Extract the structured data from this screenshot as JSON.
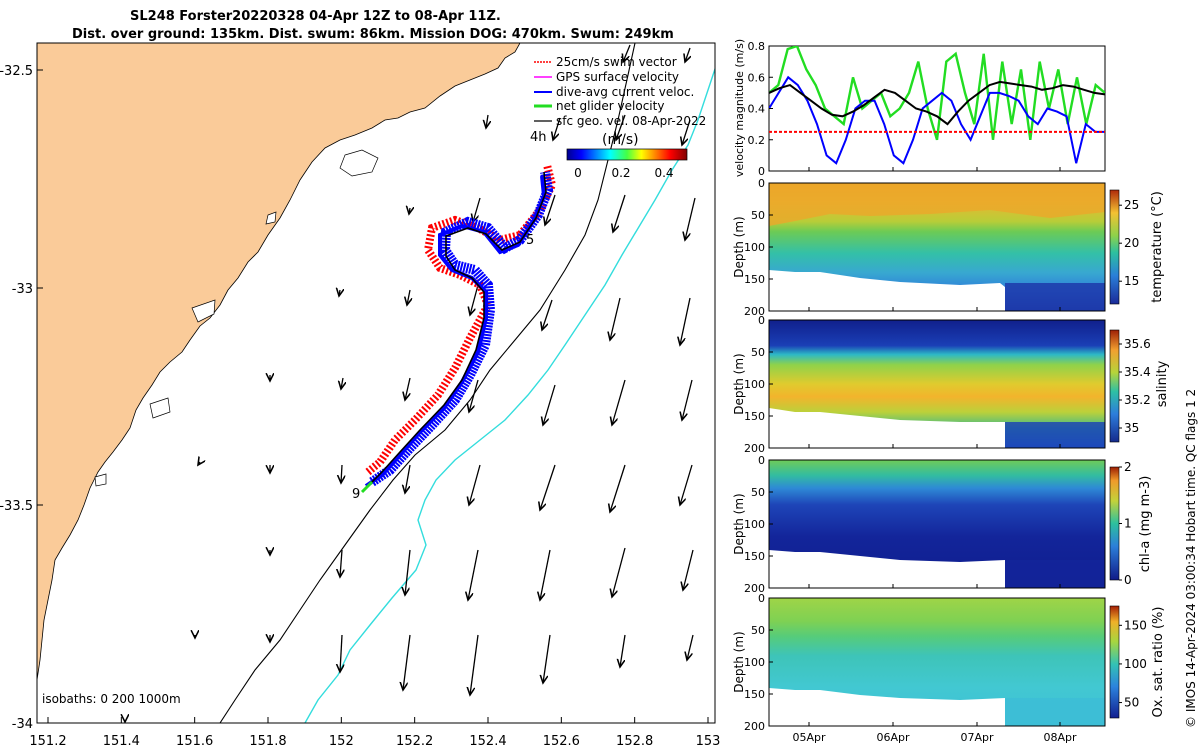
{
  "header": {
    "title_line1": "SL248 Forster20220328 04-Apr 12Z to 08-Apr 11Z.",
    "title_line2": "Dist. over ground: 135km. Dist. swum: 86km. Mission DOG: 470km. Swum: 249km"
  },
  "colors": {
    "land": "#FACB99",
    "swim_vector": "#FF0000",
    "gps_velocity": "#FF00FF",
    "dive_avg": "#0000FF",
    "net_glider": "#22DD22",
    "sfc_geo": "#000000",
    "isobath_deep": "#33DDDD"
  },
  "map": {
    "legend": [
      {
        "label": "25cm/s swim vector",
        "color": "#FF0000"
      },
      {
        "label": "GPS surface velocity",
        "color": "#FF00FF"
      },
      {
        "label": "dive-avg current veloc.",
        "color": "#0000FF"
      },
      {
        "label": "net glider velocity",
        "color": "#22DD22"
      },
      {
        "label": "sfc geo. vel. 08-Apr-2022",
        "color": "#000000"
      }
    ],
    "colorbar_title": "(m/s)",
    "colorbar_ticks": [
      "0",
      "0.2",
      "0.4"
    ],
    "time_label": "4h",
    "isobaths_label": "isobaths: 0   200  1000m",
    "day_markers": [
      "5",
      "9"
    ],
    "x_ticks": [
      "151.2",
      "151.4",
      "151.6",
      "151.8",
      "152",
      "152.2",
      "152.4",
      "152.6",
      "152.8",
      "153"
    ],
    "y_ticks": [
      "-32.5",
      "-33",
      "-33.5",
      "-34"
    ],
    "xlim": [
      151.2,
      153.0
    ],
    "ylim": [
      -34.0,
      -32.4
    ]
  },
  "chart_data": [
    {
      "type": "line",
      "name": "velocity",
      "ylabel": "velocity magnitude (m/s)",
      "ylim": [
        0,
        0.8
      ],
      "yticks": [
        "0",
        "0.2",
        "0.4",
        "0.6",
        "0.8"
      ],
      "series": [
        {
          "name": "net glider velocity",
          "color": "#22DD22",
          "values": [
            0.5,
            0.55,
            0.78,
            0.8,
            0.65,
            0.55,
            0.4,
            0.35,
            0.3,
            0.6,
            0.4,
            0.45,
            0.5,
            0.35,
            0.4,
            0.5,
            0.7,
            0.4,
            0.2,
            0.7,
            0.75,
            0.5,
            0.3,
            0.75,
            0.2,
            0.7,
            0.3,
            0.65,
            0.2,
            0.7,
            0.4,
            0.65,
            0.3,
            0.6,
            0.3,
            0.55,
            0.5
          ]
        },
        {
          "name": "dive-avg current veloc.",
          "color": "#0000FF",
          "values": [
            0.4,
            0.5,
            0.6,
            0.55,
            0.45,
            0.3,
            0.1,
            0.05,
            0.2,
            0.4,
            0.45,
            0.45,
            0.3,
            0.1,
            0.05,
            0.2,
            0.4,
            0.45,
            0.5,
            0.45,
            0.3,
            0.2,
            0.35,
            0.5,
            0.5,
            0.48,
            0.45,
            0.35,
            0.3,
            0.4,
            0.38,
            0.35,
            0.05,
            0.3,
            0.25,
            0.25
          ]
        },
        {
          "name": "sfc geo. vel.",
          "color": "#000000",
          "values": [
            0.5,
            0.53,
            0.55,
            0.5,
            0.45,
            0.4,
            0.36,
            0.35,
            0.38,
            0.42,
            0.47,
            0.52,
            0.5,
            0.45,
            0.4,
            0.38,
            0.35,
            0.3,
            0.38,
            0.45,
            0.5,
            0.55,
            0.57,
            0.56,
            0.55,
            0.54,
            0.52,
            0.53,
            0.55,
            0.54,
            0.52,
            0.5,
            0.49
          ]
        },
        {
          "name": "25cm/s swim vector",
          "color": "#FF0000",
          "values": [
            0.25,
            0.25
          ]
        }
      ]
    },
    {
      "type": "heatmap",
      "name": "temperature",
      "cbar_label": "temperature (°C)",
      "ylabel": "Depth (m)",
      "yticks": [
        "0",
        "50",
        "100",
        "150",
        "200"
      ],
      "cbar_ticks": [
        "15",
        "20",
        "25"
      ],
      "clim": [
        12,
        27
      ],
      "layers": [
        {
          "depth_max": 30,
          "value": 24.5
        },
        {
          "depth_max": 45,
          "value": 23
        },
        {
          "depth_max": 70,
          "value": 20
        },
        {
          "depth_max": 100,
          "value": 17
        },
        {
          "depth_max": 140,
          "value": 15
        },
        {
          "depth_max": 200,
          "value": 13
        }
      ]
    },
    {
      "type": "heatmap",
      "name": "salinity",
      "cbar_label": "salinity",
      "ylabel": "Depth (m)",
      "yticks": [
        "0",
        "50",
        "100",
        "150",
        "200"
      ],
      "cbar_ticks": [
        "35",
        "35.2",
        "35.4",
        "35.6"
      ],
      "clim": [
        34.9,
        35.7
      ],
      "layers": [
        {
          "depth_max": 40,
          "value": 34.95
        },
        {
          "depth_max": 60,
          "value": 35.2
        },
        {
          "depth_max": 90,
          "value": 35.35
        },
        {
          "depth_max": 120,
          "value": 35.5
        },
        {
          "depth_max": 145,
          "value": 35.3
        },
        {
          "depth_max": 200,
          "value": 35.1
        }
      ]
    },
    {
      "type": "heatmap",
      "name": "chl-a",
      "cbar_label": "chl-a (mg m-3)",
      "ylabel": "Depth (m)",
      "yticks": [
        "0",
        "50",
        "100",
        "150",
        "200"
      ],
      "cbar_ticks": [
        "0",
        "1",
        "2"
      ],
      "clim": [
        0,
        2
      ],
      "layers": [
        {
          "depth_max": 20,
          "value": 0.9
        },
        {
          "depth_max": 45,
          "value": 0.5
        },
        {
          "depth_max": 90,
          "value": 0.25
        },
        {
          "depth_max": 200,
          "value": 0.05
        }
      ]
    },
    {
      "type": "heatmap",
      "name": "oxygen",
      "cbar_label": "Ox. sat. ratio (%)",
      "ylabel": "Depth (m)",
      "yticks": [
        "0",
        "50",
        "100",
        "150",
        "200"
      ],
      "cbar_ticks": [
        "50",
        "100",
        "150"
      ],
      "clim": [
        30,
        175
      ],
      "layers": [
        {
          "depth_max": 30,
          "value": 125
        },
        {
          "depth_max": 60,
          "value": 110
        },
        {
          "depth_max": 100,
          "value": 95
        },
        {
          "depth_max": 200,
          "value": 85
        }
      ]
    }
  ],
  "time_axis": {
    "ticks": [
      "05Apr",
      "06Apr",
      "07Apr",
      "08Apr"
    ]
  },
  "credit": "© IMOS 14-Apr-2024 03:00:34 Hobart time. QC flags 1  2"
}
